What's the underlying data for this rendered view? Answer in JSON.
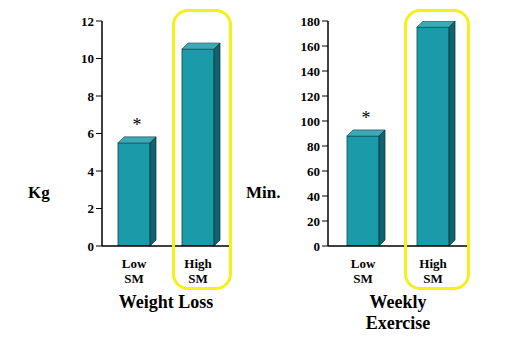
{
  "chart_data": [
    {
      "type": "bar",
      "title": "Weight Loss",
      "ylabel": "Kg",
      "categories": [
        "Low SM",
        "High SM"
      ],
      "values": [
        5.5,
        10.5
      ],
      "color": "#1b9aaa",
      "ylim": [
        0,
        12
      ],
      "yticks": [
        0,
        2,
        4,
        6,
        8,
        10,
        12
      ],
      "grid": false,
      "annotations": [
        {
          "category": "Low SM",
          "text": "*"
        }
      ]
    },
    {
      "type": "bar",
      "title": "Weekly Exercise",
      "ylabel": "Min.",
      "categories": [
        "Low SM",
        "High SM"
      ],
      "values": [
        88,
        175
      ],
      "color": "#1b9aaa",
      "ylim": [
        0,
        180
      ],
      "yticks": [
        0,
        20,
        40,
        60,
        80,
        100,
        120,
        140,
        160,
        180
      ],
      "grid": false,
      "annotations": [
        {
          "category": "Low SM",
          "text": "*"
        }
      ]
    }
  ]
}
